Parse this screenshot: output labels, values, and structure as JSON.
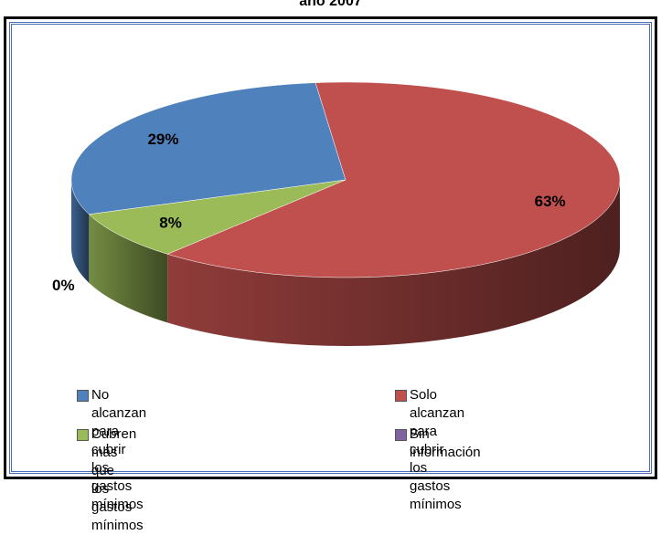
{
  "chart_data": {
    "type": "pie",
    "title": "año 2007",
    "categories": [
      "No alcanzan para cubrir\nlos gastos mínimos",
      "Solo alcanzan para cubrir\nlos gastos mínimos",
      "Cubren más que\nlos gastos mínimos",
      "Sin información"
    ],
    "values": [
      29,
      63,
      8,
      0
    ],
    "value_labels": [
      "29%",
      "63%",
      "8%",
      "0%"
    ],
    "colors": [
      "#4f81bd",
      "#c0504d",
      "#9bbb59",
      "#8064a2"
    ],
    "legend": "bottom"
  }
}
